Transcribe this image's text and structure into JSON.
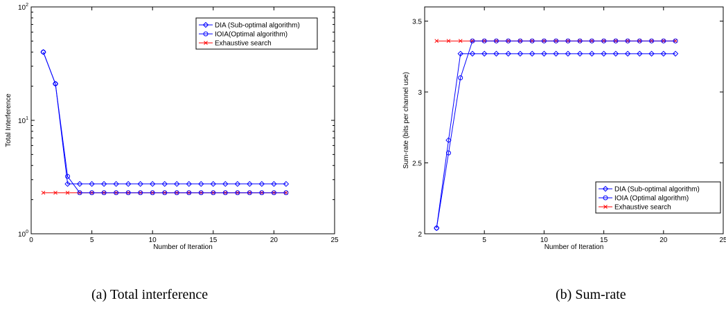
{
  "captions": {
    "a": "(a) Total interference",
    "b": "(b) Sum-rate"
  },
  "colors": {
    "dia": "#0000ff",
    "ioia": "#0000ff",
    "exhaustive": "#ff0000",
    "axis": "#000000",
    "marker_overlap": "#b000b0"
  },
  "chart_data": [
    {
      "type": "line",
      "yscale": "log",
      "title": "",
      "xlabel": "Number of Iteration",
      "ylabel": "Total Interference",
      "xlim": [
        0,
        25
      ],
      "ylim": [
        1,
        100
      ],
      "xticks": [
        "0",
        "5",
        "10",
        "15",
        "20",
        "25"
      ],
      "yticks": [
        {
          "base": "10",
          "exp": "0"
        },
        {
          "base": "10",
          "exp": "1"
        },
        {
          "base": "10",
          "exp": "2"
        }
      ],
      "legend_position": "top-right",
      "x": [
        1,
        2,
        3,
        4,
        5,
        6,
        7,
        8,
        9,
        10,
        11,
        12,
        13,
        14,
        15,
        16,
        17,
        18,
        19,
        20,
        21
      ],
      "series": [
        {
          "name": "DIA (Sub-optimal algorithm)",
          "marker": "diamond",
          "values": [
            40,
            21,
            2.75,
            2.75,
            2.75,
            2.75,
            2.75,
            2.75,
            2.75,
            2.75,
            2.75,
            2.75,
            2.75,
            2.75,
            2.75,
            2.75,
            2.75,
            2.75,
            2.75,
            2.75,
            2.75
          ]
        },
        {
          "name": "IOIA(Optimal algorithm)",
          "marker": "circle",
          "values": [
            40,
            21,
            3.2,
            2.3,
            2.3,
            2.3,
            2.3,
            2.3,
            2.3,
            2.3,
            2.3,
            2.3,
            2.3,
            2.3,
            2.3,
            2.3,
            2.3,
            2.3,
            2.3,
            2.3,
            2.3
          ]
        },
        {
          "name": "Exhaustive search",
          "marker": "x",
          "values": [
            2.3,
            2.3,
            2.3,
            2.3,
            2.3,
            2.3,
            2.3,
            2.3,
            2.3,
            2.3,
            2.3,
            2.3,
            2.3,
            2.3,
            2.3,
            2.3,
            2.3,
            2.3,
            2.3,
            2.3,
            2.3
          ]
        }
      ]
    },
    {
      "type": "line",
      "yscale": "linear",
      "title": "",
      "xlabel": "Number of Iteration",
      "ylabel": "Sum-rate (bits per channel use)",
      "xlim": [
        0,
        25
      ],
      "ylim": [
        2,
        3.6
      ],
      "xticks": [
        "5",
        "10",
        "15",
        "20",
        "25"
      ],
      "yticks": [
        "2",
        "2.5",
        "3",
        "3.5"
      ],
      "legend_position": "bottom-right",
      "x": [
        1,
        2,
        3,
        4,
        5,
        6,
        7,
        8,
        9,
        10,
        11,
        12,
        13,
        14,
        15,
        16,
        17,
        18,
        19,
        20,
        21
      ],
      "series": [
        {
          "name": "DIA (Sub-optimal algorithm)",
          "marker": "diamond",
          "values": [
            2.04,
            2.66,
            3.27,
            3.27,
            3.27,
            3.27,
            3.27,
            3.27,
            3.27,
            3.27,
            3.27,
            3.27,
            3.27,
            3.27,
            3.27,
            3.27,
            3.27,
            3.27,
            3.27,
            3.27,
            3.27
          ]
        },
        {
          "name": "IOIA (Optimal algorithm)",
          "marker": "circle",
          "values": [
            2.04,
            2.57,
            3.1,
            3.36,
            3.36,
            3.36,
            3.36,
            3.36,
            3.36,
            3.36,
            3.36,
            3.36,
            3.36,
            3.36,
            3.36,
            3.36,
            3.36,
            3.36,
            3.36,
            3.36,
            3.36
          ]
        },
        {
          "name": "Exhaustive search",
          "marker": "x",
          "values": [
            3.36,
            3.36,
            3.36,
            3.36,
            3.36,
            3.36,
            3.36,
            3.36,
            3.36,
            3.36,
            3.36,
            3.36,
            3.36,
            3.36,
            3.36,
            3.36,
            3.36,
            3.36,
            3.36,
            3.36,
            3.36
          ]
        }
      ]
    }
  ]
}
